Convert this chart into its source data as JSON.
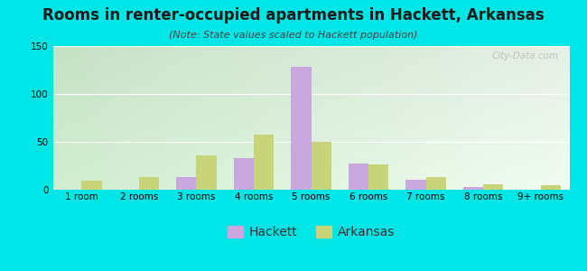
{
  "title": "Rooms in renter-occupied apartments in Hackett, Arkansas",
  "subtitle": "(Note: State values scaled to Hackett population)",
  "categories": [
    "1 room",
    "2 rooms",
    "3 rooms",
    "4 rooms",
    "5 rooms",
    "6 rooms",
    "7 rooms",
    "8 rooms",
    "9+ rooms"
  ],
  "hackett": [
    0,
    0,
    13,
    33,
    128,
    27,
    10,
    3,
    0
  ],
  "arkansas": [
    9,
    13,
    36,
    58,
    50,
    26,
    13,
    6,
    5
  ],
  "hackett_color": "#c9a8e0",
  "arkansas_color": "#c8d478",
  "background_color": "#00e5e5",
  "ylim": [
    0,
    150
  ],
  "yticks": [
    0,
    50,
    100,
    150
  ],
  "bar_width": 0.35,
  "title_fontsize": 12,
  "subtitle_fontsize": 8,
  "legend_fontsize": 10,
  "tick_fontsize": 7.5,
  "watermark": "City-Data.com"
}
